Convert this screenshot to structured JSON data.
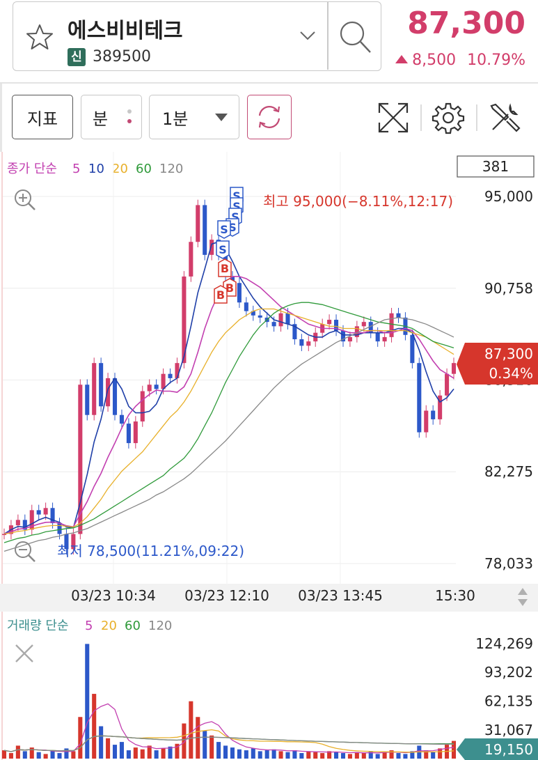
{
  "stock": {
    "name": "에스비비테크",
    "badge": "신",
    "code": "389500",
    "price": "87,300",
    "change": "8,500",
    "change_pct": "10.79%"
  },
  "toolbar": {
    "indicator_label": "지표",
    "unit_label": "분",
    "period_label": "1분"
  },
  "chart": {
    "legend_prefix": "종가 단순",
    "legend_periods": [
      "5",
      "10",
      "20",
      "60",
      "120"
    ],
    "legend_colors": [
      "#c23fb0",
      "#1f3fa8",
      "#e8b02a",
      "#2f9a3a",
      "#888888"
    ],
    "count_box": "381",
    "y_labels": [
      "95,000",
      "90,758",
      "86,516",
      "82,275",
      "78,033"
    ],
    "high_label": "최고 95,000(−8.11%,12:17)",
    "low_label": "최저 78,500(11.21%,09:22)",
    "current_price": "87,300",
    "current_pct": "0.34%",
    "signal_markers": [
      "S",
      "S",
      "S",
      "S",
      "S",
      "S",
      "B",
      "B",
      "B"
    ]
  },
  "x_axis": {
    "labels": [
      "03/23 10:34",
      "03/23 12:10",
      "03/23 13:45",
      "15:30"
    ]
  },
  "volume": {
    "legend_prefix": "거래량 단순",
    "legend_periods": [
      "5",
      "20",
      "60",
      "120"
    ],
    "legend_colors": [
      "#c23fb0",
      "#e8b02a",
      "#2f9a3a",
      "#888888"
    ],
    "y_labels": [
      "124,269",
      "93,202",
      "62,135",
      "31,067"
    ],
    "current_volume": "19,150"
  },
  "colors": {
    "up": "#d23d6a",
    "down": "#2c58c9",
    "high_text": "#d6362c",
    "low_text": "#2c58c9",
    "teal": "#3d8f8e"
  },
  "chart_data": {
    "type": "line",
    "title": "",
    "x_ticks": [
      "03/23 10:34",
      "03/23 12:10",
      "03/23 13:45",
      "15:30"
    ],
    "ylim": [
      78033,
      95000
    ],
    "y_ticks": [
      95000,
      90758,
      86516,
      82275,
      78033
    ],
    "series": [
      {
        "name": "종가",
        "values": [
          79400,
          79800,
          80050,
          79600,
          80500,
          80300,
          80600,
          79900,
          79400,
          78700,
          79400,
          86300,
          84900,
          87300,
          85300,
          86600,
          84900,
          84500,
          83600,
          84600,
          86000,
          86300,
          86100,
          86800,
          86600,
          87300,
          91300,
          92900,
          94600,
          92300,
          93000,
          92300,
          91300,
          91000,
          90100,
          89700,
          89500,
          89400,
          89200,
          89000,
          89600,
          89100,
          88400,
          88100,
          88300,
          88700,
          89100,
          89300,
          88800,
          88300,
          88500,
          89000,
          89200,
          88700,
          88300,
          88500,
          89600,
          89400,
          88600,
          87300,
          84100,
          85100,
          84700,
          85800,
          86800,
          87300
        ]
      },
      {
        "name": "5",
        "values": [
          79400,
          79600,
          79750,
          79710,
          79870,
          80050,
          80170,
          80050,
          79940,
          79720,
          79680,
          80850,
          82150,
          83650,
          84700,
          86100,
          86600,
          86100,
          85300,
          85000,
          85000,
          85070,
          85400,
          86100,
          86400,
          86600,
          87600,
          89000,
          90550,
          91650,
          92800,
          92900,
          92600,
          92000,
          91300,
          90800,
          90300,
          89900,
          89600,
          89300,
          89200,
          89100,
          89000,
          88800,
          88600,
          88500,
          88500,
          88700,
          88800,
          88600,
          88600,
          88600,
          88700,
          88700,
          88700,
          88700,
          88800,
          88900,
          88900,
          88700,
          87900,
          86900,
          86000,
          85500,
          85700,
          86100
        ]
      },
      {
        "name": "10",
        "values": [
          79400,
          79500,
          79620,
          79660,
          79760,
          79860,
          79940,
          79950,
          79900,
          79780,
          79730,
          80330,
          80900,
          81600,
          82200,
          82950,
          83600,
          84300,
          84900,
          85300,
          85600,
          85850,
          86050,
          86000,
          86000,
          85950,
          86200,
          86800,
          87800,
          88900,
          89800,
          90500,
          91000,
          91300,
          91300,
          91200,
          91000,
          90800,
          90500,
          90200,
          89900,
          89700,
          89500,
          89300,
          89100,
          89000,
          88900,
          88900,
          88900,
          88800,
          88700,
          88700,
          88700,
          88800,
          88800,
          88700,
          88700,
          88800,
          88900,
          88800,
          88400,
          87900,
          87400,
          87000,
          86800,
          86600
        ]
      },
      {
        "name": "20",
        "values": [
          79400,
          79450,
          79520,
          79560,
          79640,
          79700,
          79760,
          79790,
          79790,
          79760,
          79720,
          79900,
          80200,
          80600,
          81000,
          81500,
          81900,
          82300,
          82600,
          82900,
          83200,
          83600,
          84000,
          84400,
          84800,
          85100,
          85500,
          86000,
          86600,
          87200,
          87800,
          88300,
          88700,
          89000,
          89300,
          89500,
          89700,
          89800,
          89800,
          89800,
          89700,
          89600,
          89500,
          89400,
          89300,
          89200,
          89100,
          89000,
          89000,
          88900,
          88900,
          88900,
          88800,
          88800,
          88800,
          88800,
          88800,
          88800,
          88800,
          88700,
          88600,
          88500,
          88300,
          88100,
          87900,
          87700
        ]
      },
      {
        "name": "60",
        "values": [
          79000,
          79100,
          79200,
          79250,
          79350,
          79400,
          79500,
          79550,
          79600,
          79650,
          79680,
          79800,
          79950,
          80100,
          80300,
          80500,
          80700,
          80900,
          81100,
          81300,
          81500,
          81700,
          81900,
          82100,
          82400,
          82650,
          82900,
          83300,
          83800,
          84400,
          85000,
          85700,
          86400,
          87000,
          87600,
          88100,
          88600,
          89000,
          89300,
          89600,
          89800,
          89950,
          90050,
          90100,
          90100,
          90050,
          90000,
          89900,
          89800,
          89700,
          89600,
          89500,
          89400,
          89300,
          89200,
          89150,
          89100,
          89050,
          89000,
          88900,
          88700,
          88500,
          88300,
          88200,
          88100,
          88000
        ]
      },
      {
        "name": "120",
        "values": [
          78600,
          78700,
          78800,
          78900,
          79000,
          79100,
          79150,
          79250,
          79300,
          79400,
          79450,
          79550,
          79650,
          79800,
          79950,
          80100,
          80250,
          80400,
          80550,
          80700,
          80850,
          81000,
          81200,
          81350,
          81550,
          81750,
          81950,
          82200,
          82500,
          82800,
          83100,
          83400,
          83700,
          84050,
          84400,
          84750,
          85100,
          85450,
          85800,
          86150,
          86450,
          86750,
          87000,
          87250,
          87450,
          87650,
          87850,
          88050,
          88250,
          88400,
          88550,
          88700,
          88850,
          89000,
          89150,
          89300,
          89350,
          89400,
          89350,
          89300,
          89200,
          89100,
          88950,
          88800,
          88650,
          88500
        ]
      }
    ],
    "volume": {
      "ylim": [
        0,
        124269
      ],
      "y_ticks": [
        124269,
        93202,
        62135,
        31067
      ],
      "values": [
        9000,
        6000,
        14000,
        8000,
        12000,
        7000,
        5000,
        9000,
        6000,
        11000,
        8000,
        45000,
        124000,
        70000,
        35000,
        22000,
        15000,
        18000,
        9000,
        12000,
        10000,
        14000,
        9000,
        11000,
        13000,
        16000,
        38000,
        62000,
        45000,
        30000,
        25000,
        18000,
        14000,
        12000,
        10000,
        9000,
        11000,
        8000,
        9000,
        10000,
        8000,
        7000,
        9000,
        6000,
        8000,
        7000,
        6000,
        8000,
        7000,
        6000,
        5000,
        7000,
        6000,
        8000,
        5000,
        7000,
        9000,
        6000,
        5000,
        8000,
        14000,
        9000,
        7000,
        11000,
        15000,
        19150
      ]
    }
  }
}
